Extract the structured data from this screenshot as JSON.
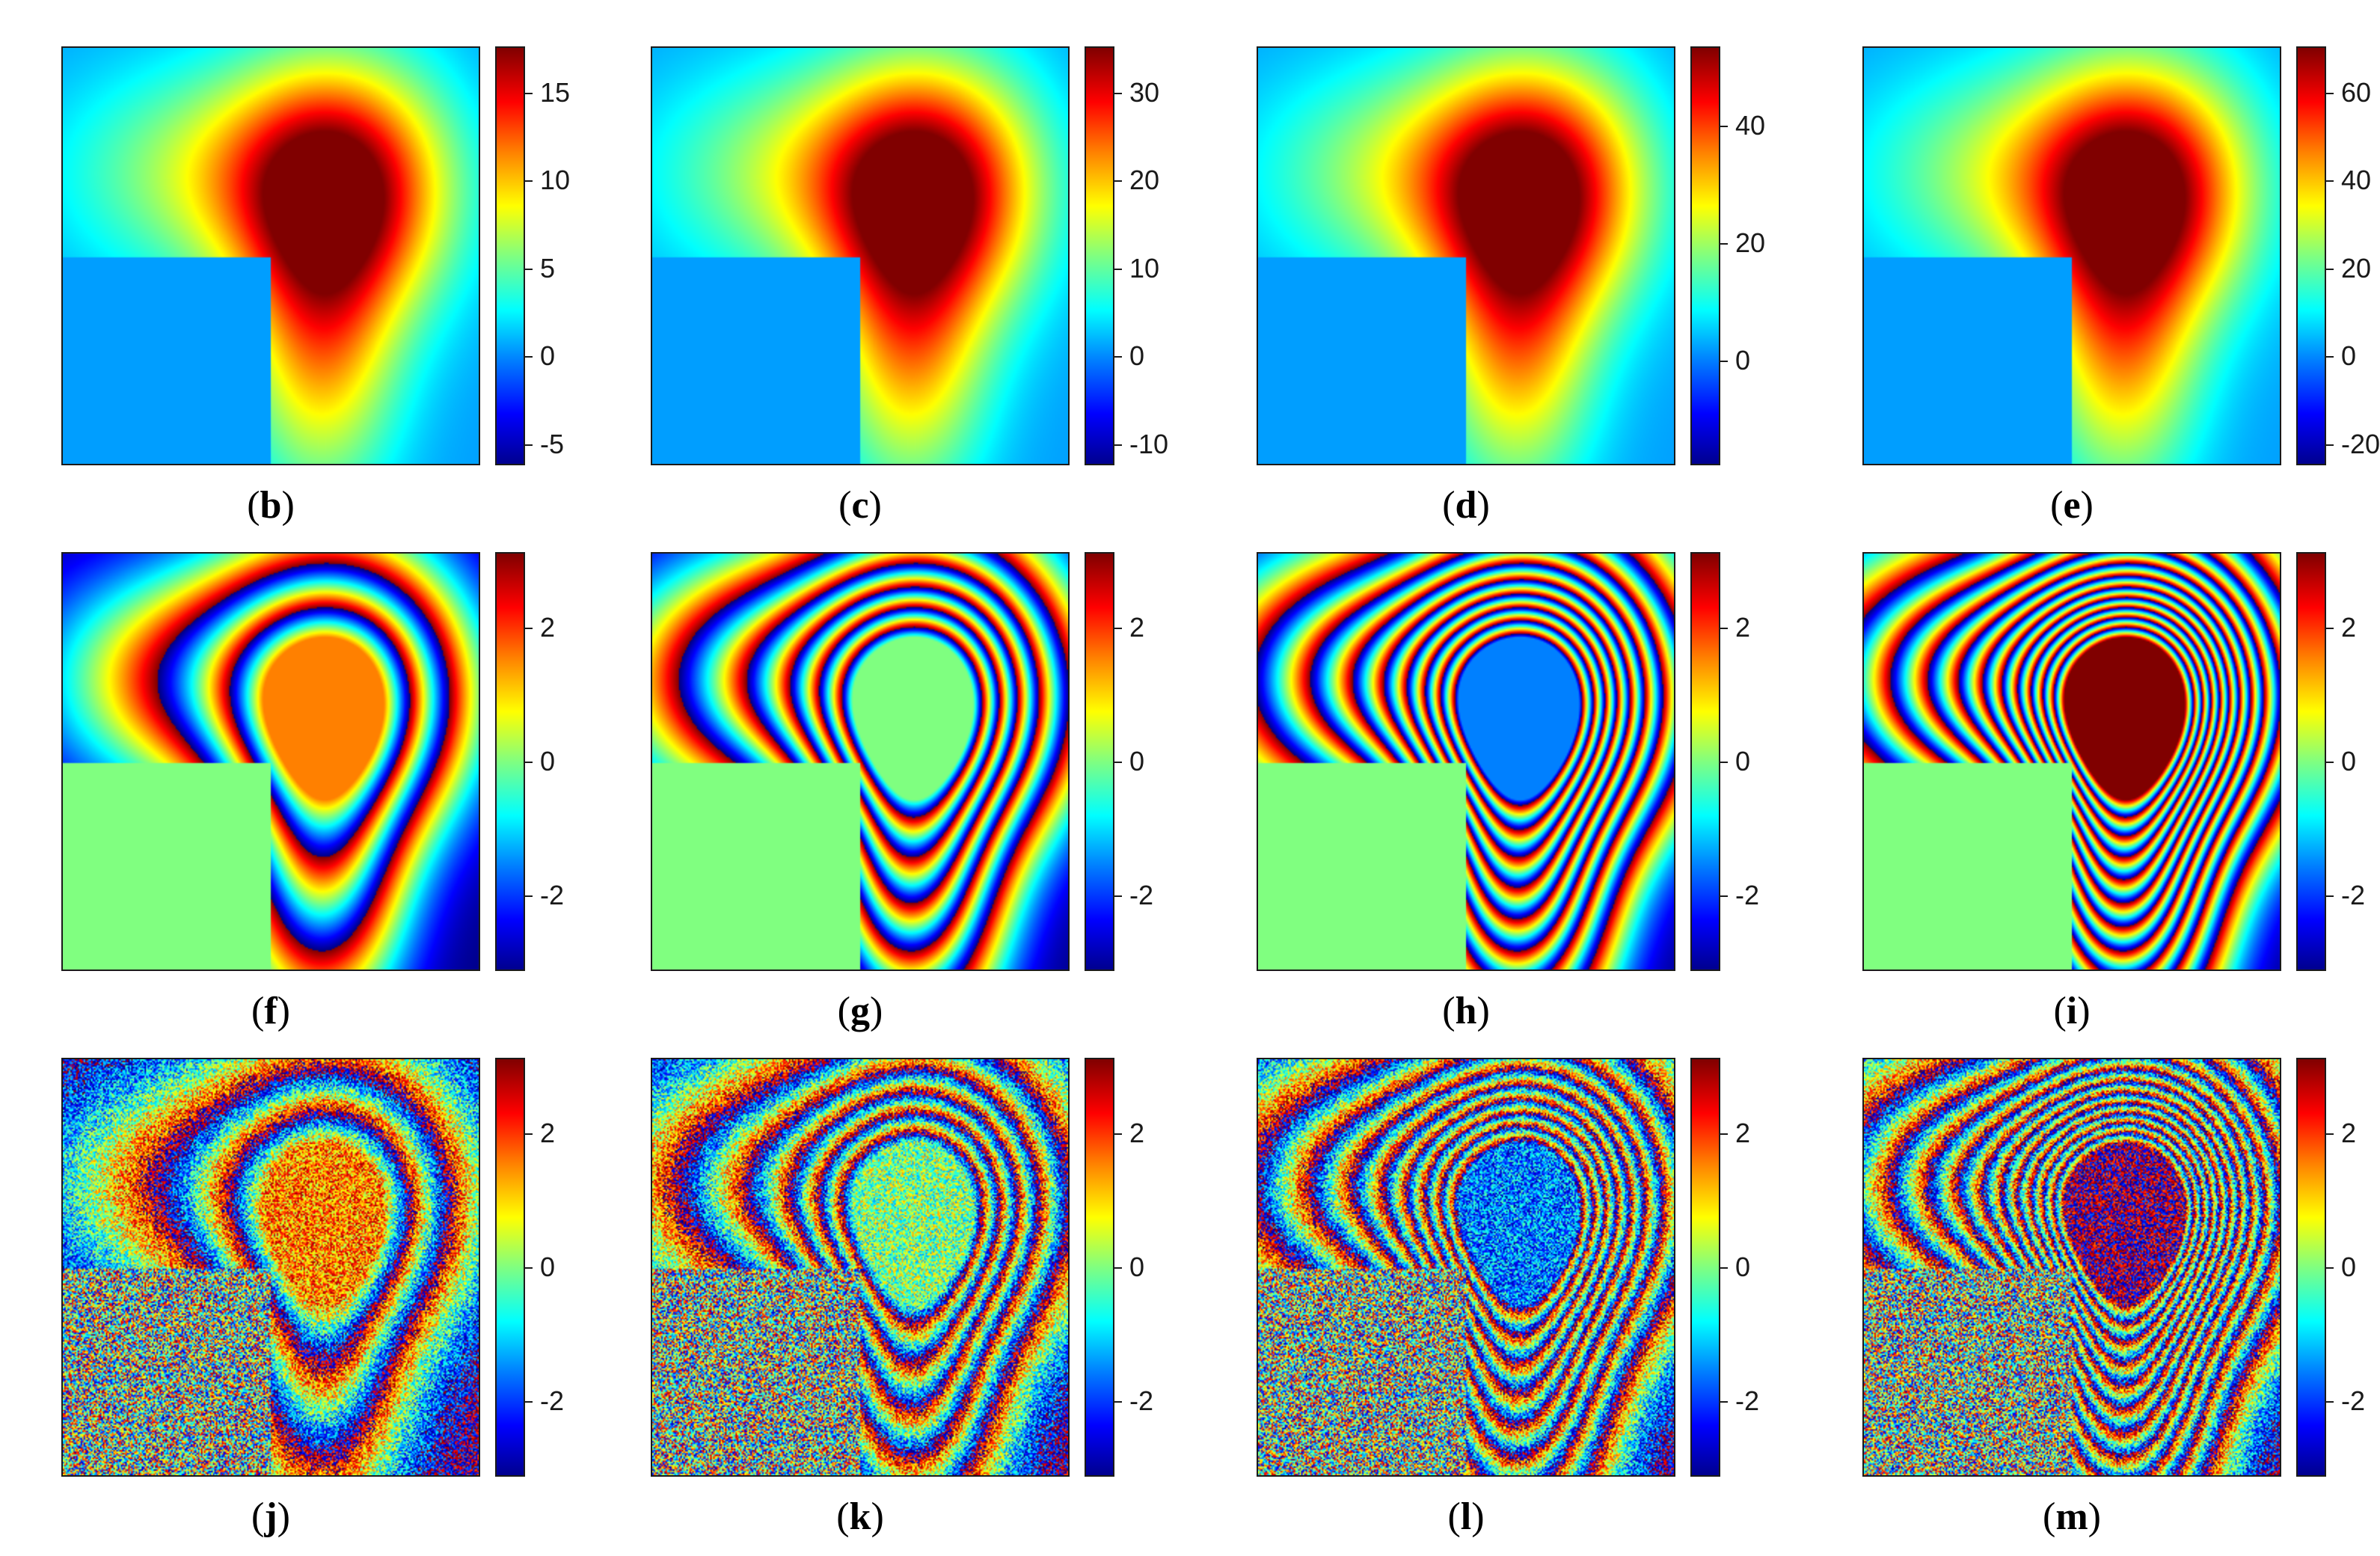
{
  "figure": {
    "panels": [
      {
        "id": "b",
        "label_open": "(",
        "letter": "b",
        "label_close": ")",
        "ticks": [
          "15",
          "10",
          "5",
          "0",
          "-5"
        ],
        "pattern": "height"
      },
      {
        "id": "c",
        "label_open": "(",
        "letter": "c",
        "label_close": ")",
        "ticks": [
          "30",
          "20",
          "10",
          "0",
          "-10"
        ],
        "pattern": "height"
      },
      {
        "id": "d",
        "label_open": "(",
        "letter": "d",
        "label_close": ")",
        "ticks": [
          "40",
          "20",
          "0"
        ],
        "pattern": "height"
      },
      {
        "id": "e",
        "label_open": "(",
        "letter": "e",
        "label_close": ")",
        "ticks": [
          "60",
          "40",
          "20",
          "0",
          "-20"
        ],
        "pattern": "height"
      },
      {
        "id": "f",
        "label_open": "(",
        "letter": "f",
        "label_close": ")",
        "ticks": [
          "2",
          "0",
          "-2"
        ],
        "pattern": "wrapped",
        "fringe_scale": 1
      },
      {
        "id": "g",
        "label_open": "(",
        "letter": "g",
        "label_close": ")",
        "ticks": [
          "2",
          "0",
          "-2"
        ],
        "pattern": "wrapped",
        "fringe_scale": 2
      },
      {
        "id": "h",
        "label_open": "(",
        "letter": "h",
        "label_close": ")",
        "ticks": [
          "2",
          "0",
          "-2"
        ],
        "pattern": "wrapped",
        "fringe_scale": 3
      },
      {
        "id": "i",
        "label_open": "(",
        "letter": "i",
        "label_close": ")",
        "ticks": [
          "2",
          "0",
          "-2"
        ],
        "pattern": "wrapped",
        "fringe_scale": 4
      },
      {
        "id": "j",
        "label_open": "(",
        "letter": "j",
        "label_close": ")",
        "ticks": [
          "2",
          "0",
          "-2"
        ],
        "pattern": "noisy",
        "fringe_scale": 1
      },
      {
        "id": "k",
        "label_open": "(",
        "letter": "k",
        "label_close": ")",
        "ticks": [
          "2",
          "0",
          "-2"
        ],
        "pattern": "noisy",
        "fringe_scale": 2
      },
      {
        "id": "l",
        "label_open": "(",
        "letter": "l",
        "label_close": ")",
        "ticks": [
          "2",
          "0",
          "-2"
        ],
        "pattern": "noisy",
        "fringe_scale": 3
      },
      {
        "id": "m",
        "label_open": "(",
        "letter": "m",
        "label_close": ")",
        "ticks": [
          "2",
          "0",
          "-2"
        ],
        "pattern": "noisy",
        "fringe_scale": 4
      }
    ]
  }
}
